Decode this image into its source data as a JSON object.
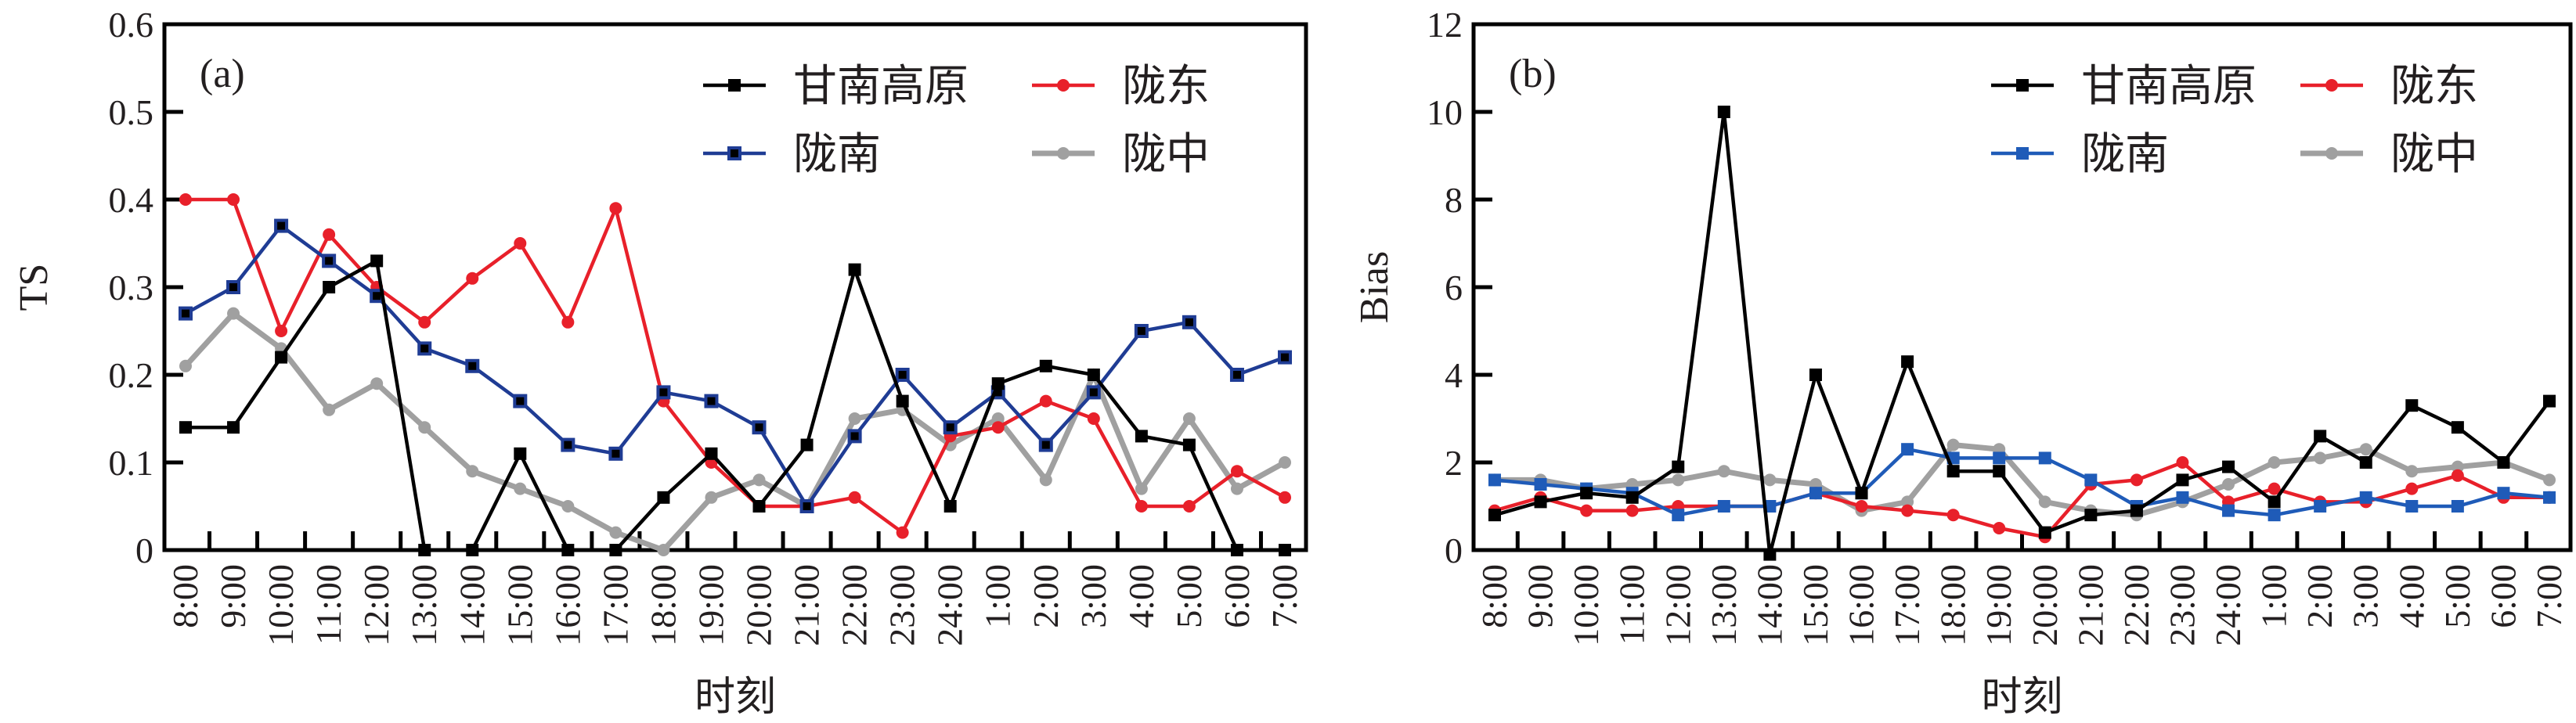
{
  "chart_data": [
    {
      "type": "line",
      "panel_label": "(a)",
      "xlabel": "时刻",
      "ylabel": "TS",
      "ylim": [
        0,
        0.6
      ],
      "yticks": [
        "0",
        "0.1",
        "0.2",
        "0.3",
        "0.4",
        "0.5",
        "0.6"
      ],
      "grid": false,
      "legend_position": "top-right",
      "categories": [
        "8:00",
        "9:00",
        "10:00",
        "11:00",
        "12:00",
        "13:00",
        "14:00",
        "15:00",
        "16:00",
        "17:00",
        "18:00",
        "19:00",
        "20:00",
        "21:00",
        "22:00",
        "23:00",
        "24:00",
        "1:00",
        "2:00",
        "3:00",
        "4:00",
        "5:00",
        "6:00",
        "7:00"
      ],
      "series": [
        {
          "name": "甘南高原",
          "color": "#000000",
          "marker": "square",
          "values": [
            0.14,
            0.14,
            0.22,
            0.3,
            0.33,
            0,
            0,
            0.11,
            0,
            0,
            0.06,
            0.11,
            0.05,
            0.12,
            0.32,
            0.17,
            0.05,
            0.19,
            0.21,
            0.2,
            0.13,
            0.12,
            0,
            0
          ]
        },
        {
          "name": "陇东",
          "color": "#e8202a",
          "marker": "circle",
          "values": [
            0.4,
            0.4,
            0.25,
            0.36,
            0.3,
            0.26,
            0.31,
            0.35,
            0.26,
            0.39,
            0.17,
            0.1,
            0.05,
            0.05,
            0.06,
            0.02,
            0.13,
            0.14,
            0.17,
            0.15,
            0.05,
            0.05,
            0.09,
            0.06
          ]
        },
        {
          "name": "陇南",
          "color": "#1f3c94",
          "marker": "square-outline",
          "values": [
            0.27,
            0.3,
            0.37,
            0.33,
            0.29,
            0.23,
            0.21,
            0.17,
            0.12,
            0.11,
            0.18,
            0.17,
            0.14,
            0.05,
            0.13,
            0.2,
            0.14,
            0.18,
            0.12,
            0.18,
            0.25,
            0.26,
            0.2,
            0.22
          ]
        },
        {
          "name": "陇中",
          "color": "#a0a0a0",
          "marker": "circle",
          "values": [
            0.21,
            0.27,
            0.23,
            0.16,
            0.19,
            0.14,
            0.09,
            0.07,
            0.05,
            0.02,
            0,
            0.06,
            0.08,
            0.05,
            0.15,
            0.16,
            0.12,
            0.15,
            0.08,
            0.2,
            0.07,
            0.15,
            0.07,
            0.1
          ]
        }
      ]
    },
    {
      "type": "line",
      "panel_label": "(b)",
      "xlabel": "时刻",
      "ylabel": "Bias",
      "ylim": [
        0,
        12
      ],
      "yticks": [
        "0",
        "2",
        "4",
        "6",
        "8",
        "10",
        "12"
      ],
      "grid": false,
      "legend_position": "top-right",
      "categories": [
        "8:00",
        "9:00",
        "10:00",
        "11:00",
        "12:00",
        "13:00",
        "14:00",
        "15:00",
        "16:00",
        "17:00",
        "18:00",
        "19:00",
        "20:00",
        "21:00",
        "22:00",
        "23:00",
        "24:00",
        "1:00",
        "2:00",
        "3:00",
        "4:00",
        "5:00",
        "6:00",
        "7:00"
      ],
      "series": [
        {
          "name": "甘南高原",
          "color": "#000000",
          "marker": "square",
          "values": [
            0.8,
            1.1,
            1.3,
            1.2,
            1.9,
            10.0,
            -0.1,
            4.0,
            1.3,
            4.3,
            1.8,
            1.8,
            0.4,
            0.8,
            0.9,
            1.6,
            1.9,
            1.1,
            2.6,
            2.0,
            3.3,
            2.8,
            2.0,
            3.4
          ]
        },
        {
          "name": "陇东",
          "color": "#e8202a",
          "marker": "circle",
          "values": [
            0.9,
            1.2,
            0.9,
            0.9,
            1.0,
            1.0,
            1.0,
            1.3,
            1.0,
            0.9,
            0.8,
            0.5,
            0.3,
            1.5,
            1.6,
            2.0,
            1.1,
            1.4,
            1.1,
            1.1,
            1.4,
            1.7,
            1.2,
            1.2
          ]
        },
        {
          "name": "陇南",
          "color": "#1f5bb8",
          "marker": "square",
          "values": [
            1.6,
            1.5,
            1.4,
            1.3,
            0.8,
            1.0,
            1.0,
            1.3,
            1.3,
            2.3,
            2.1,
            2.1,
            2.1,
            1.6,
            1.0,
            1.2,
            0.9,
            0.8,
            1.0,
            1.2,
            1.0,
            1.0,
            1.3,
            1.2
          ]
        },
        {
          "name": "陇中",
          "color": "#a0a0a0",
          "marker": "circle",
          "values": [
            1.6,
            1.6,
            1.4,
            1.5,
            1.6,
            1.8,
            1.6,
            1.5,
            0.9,
            1.1,
            2.4,
            2.3,
            1.1,
            0.9,
            0.8,
            1.1,
            1.5,
            2.0,
            2.1,
            2.3,
            1.8,
            1.9,
            2.0,
            1.6
          ]
        }
      ]
    }
  ]
}
